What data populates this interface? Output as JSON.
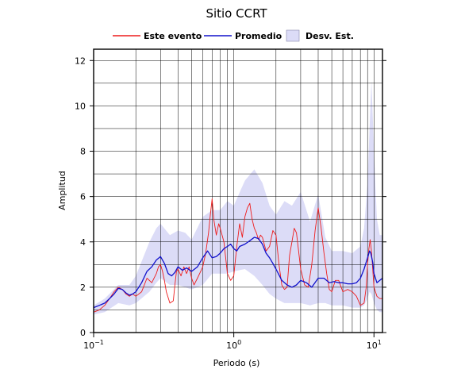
{
  "chart_data": {
    "type": "line",
    "title": "Sitio CCRT",
    "xlabel": "Periodo (s)",
    "ylabel": "Amplitud",
    "xscale": "log",
    "xlim": [
      0.1,
      11.5
    ],
    "ylim": [
      0,
      12.5
    ],
    "grid": true,
    "legend_position": "top",
    "x_ticks": [
      {
        "value": 0.1,
        "base": "10",
        "exp": "−1"
      },
      {
        "value": 1,
        "base": "10",
        "exp": "0"
      },
      {
        "value": 10,
        "base": "10",
        "exp": "1"
      }
    ],
    "y_ticks": [
      0,
      2,
      4,
      6,
      8,
      10,
      12
    ],
    "legend": [
      {
        "label": "Este evento",
        "kind": "line",
        "color": "#ee1c1c"
      },
      {
        "label": "Promedio",
        "kind": "line",
        "color": "#1111cc"
      },
      {
        "label": "Desv. Est.",
        "kind": "band",
        "color": "#dcdcf7"
      }
    ],
    "band": {
      "name": "Desv. Est.",
      "x": [
        0.1,
        0.12,
        0.15,
        0.18,
        0.2,
        0.25,
        0.28,
        0.3,
        0.35,
        0.4,
        0.45,
        0.5,
        0.6,
        0.7,
        0.8,
        0.9,
        1.0,
        1.2,
        1.4,
        1.6,
        1.8,
        2.0,
        2.3,
        2.6,
        3.0,
        3.5,
        4.0,
        4.5,
        5.0,
        6.0,
        7.0,
        8.0,
        8.5,
        9.0,
        9.3,
        9.6,
        10.0,
        10.5,
        11.0,
        11.5
      ],
      "upper": [
        1.2,
        1.5,
        2.1,
        2.1,
        2.5,
        4.0,
        4.6,
        4.8,
        4.3,
        4.5,
        4.4,
        4.1,
        5.1,
        5.4,
        5.4,
        5.8,
        5.6,
        6.7,
        7.2,
        6.6,
        5.6,
        5.2,
        5.8,
        5.6,
        6.2,
        4.9,
        6.1,
        4.2,
        3.6,
        3.6,
        3.5,
        3.8,
        4.6,
        6.6,
        9.0,
        11.1,
        8.0,
        5.0,
        4.3,
        4.3
      ],
      "lower": [
        0.8,
        0.9,
        1.3,
        1.2,
        1.3,
        1.8,
        2.2,
        2.4,
        2.1,
        2.1,
        2.0,
        1.9,
        2.1,
        2.6,
        2.6,
        2.6,
        2.7,
        2.8,
        2.5,
        2.1,
        1.7,
        1.5,
        1.3,
        1.3,
        1.3,
        1.2,
        1.3,
        1.3,
        1.2,
        1.2,
        1.1,
        1.1,
        1.2,
        1.5,
        1.8,
        1.7,
        1.3,
        1.0,
        0.9,
        0.9
      ]
    },
    "series": [
      {
        "name": "Este evento",
        "color": "#ee1c1c",
        "x": [
          0.1,
          0.11,
          0.12,
          0.13,
          0.14,
          0.15,
          0.16,
          0.17,
          0.18,
          0.19,
          0.2,
          0.22,
          0.24,
          0.26,
          0.28,
          0.29,
          0.3,
          0.31,
          0.32,
          0.33,
          0.35,
          0.37,
          0.38,
          0.39,
          0.4,
          0.42,
          0.44,
          0.46,
          0.48,
          0.5,
          0.52,
          0.55,
          0.58,
          0.6,
          0.63,
          0.66,
          0.68,
          0.7,
          0.72,
          0.75,
          0.78,
          0.8,
          0.85,
          0.9,
          0.95,
          1.0,
          1.05,
          1.1,
          1.15,
          1.2,
          1.25,
          1.3,
          1.35,
          1.4,
          1.45,
          1.5,
          1.55,
          1.6,
          1.7,
          1.8,
          1.9,
          2.0,
          2.1,
          2.2,
          2.3,
          2.4,
          2.5,
          2.6,
          2.7,
          2.8,
          2.9,
          3.0,
          3.2,
          3.4,
          3.6,
          3.8,
          4.0,
          4.2,
          4.4,
          4.6,
          4.8,
          5.0,
          5.3,
          5.6,
          6.0,
          6.5,
          7.0,
          7.5,
          8.0,
          8.5,
          8.8,
          9.0,
          9.2,
          9.4,
          9.6,
          9.8,
          10.0,
          10.5,
          11.0,
          11.5
        ],
        "y": [
          0.9,
          1.0,
          1.2,
          1.5,
          1.8,
          2.0,
          1.9,
          1.7,
          1.6,
          1.7,
          1.6,
          1.8,
          2.4,
          2.2,
          2.6,
          2.9,
          3.0,
          2.7,
          2.3,
          1.8,
          1.3,
          1.4,
          2.1,
          2.7,
          2.8,
          2.5,
          2.9,
          2.6,
          2.9,
          2.4,
          2.1,
          2.4,
          2.7,
          2.9,
          3.5,
          4.4,
          5.2,
          5.9,
          5.0,
          4.3,
          4.8,
          4.6,
          4.0,
          2.6,
          2.3,
          2.5,
          3.8,
          4.8,
          4.2,
          5.1,
          5.5,
          5.7,
          5.0,
          4.6,
          4.4,
          4.1,
          4.3,
          4.2,
          3.6,
          3.8,
          4.5,
          4.3,
          3.0,
          2.1,
          1.9,
          2.0,
          3.4,
          4.0,
          4.6,
          4.4,
          3.6,
          2.8,
          2.1,
          2.0,
          3.0,
          4.5,
          5.5,
          4.6,
          3.5,
          2.6,
          1.9,
          1.8,
          2.3,
          2.3,
          1.8,
          1.9,
          1.8,
          1.6,
          1.2,
          1.3,
          2.0,
          3.0,
          3.7,
          4.1,
          3.6,
          2.8,
          2.0,
          1.6,
          1.5,
          1.5
        ]
      },
      {
        "name": "Promedio",
        "color": "#1111cc",
        "x": [
          0.1,
          0.11,
          0.12,
          0.13,
          0.14,
          0.15,
          0.16,
          0.17,
          0.18,
          0.19,
          0.2,
          0.22,
          0.24,
          0.26,
          0.28,
          0.3,
          0.32,
          0.34,
          0.36,
          0.38,
          0.4,
          0.43,
          0.46,
          0.5,
          0.55,
          0.6,
          0.65,
          0.7,
          0.75,
          0.8,
          0.85,
          0.9,
          0.95,
          1.0,
          1.05,
          1.1,
          1.2,
          1.3,
          1.4,
          1.5,
          1.6,
          1.7,
          1.8,
          1.9,
          2.0,
          2.2,
          2.4,
          2.6,
          2.8,
          3.0,
          3.3,
          3.6,
          4.0,
          4.4,
          4.8,
          5.2,
          5.6,
          6.0,
          6.5,
          7.0,
          7.5,
          8.0,
          8.5,
          9.0,
          9.3,
          9.5,
          9.8,
          10.0,
          10.5,
          11.0,
          11.5
        ],
        "y": [
          1.1,
          1.2,
          1.3,
          1.5,
          1.7,
          1.95,
          1.9,
          1.75,
          1.65,
          1.7,
          1.8,
          2.2,
          2.7,
          2.9,
          3.2,
          3.35,
          3.05,
          2.6,
          2.5,
          2.65,
          2.9,
          2.75,
          2.85,
          2.7,
          2.9,
          3.3,
          3.6,
          3.3,
          3.35,
          3.5,
          3.7,
          3.8,
          3.9,
          3.7,
          3.6,
          3.8,
          3.9,
          4.05,
          4.2,
          4.15,
          3.9,
          3.5,
          3.3,
          3.05,
          2.8,
          2.3,
          2.1,
          2.0,
          2.1,
          2.3,
          2.2,
          2.0,
          2.4,
          2.4,
          2.2,
          2.25,
          2.2,
          2.2,
          2.15,
          2.15,
          2.2,
          2.4,
          2.8,
          3.3,
          3.6,
          3.5,
          3.1,
          2.6,
          2.2,
          2.3,
          2.4
        ]
      }
    ]
  }
}
